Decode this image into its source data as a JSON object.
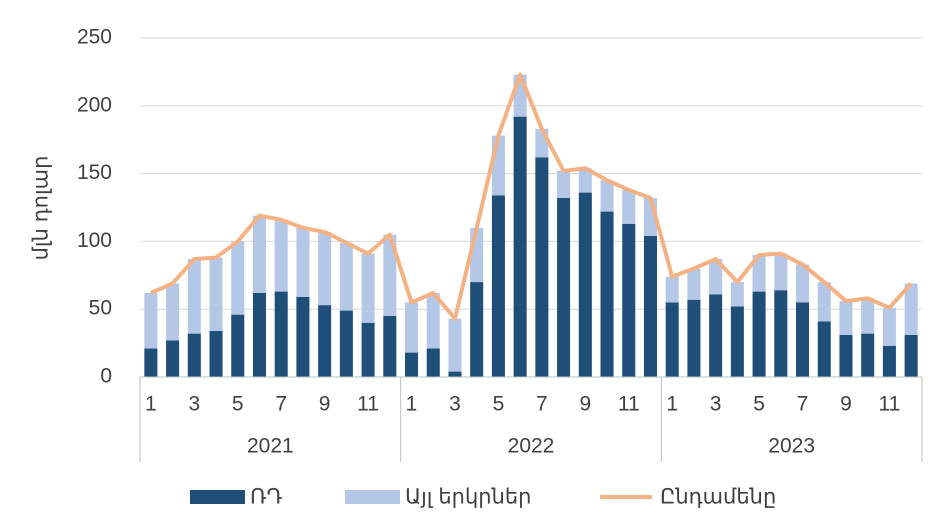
{
  "chart_data": {
    "type": "stacked_bar_line",
    "y_label": "մլն դոլար",
    "categories": [
      "1",
      null,
      "3",
      null,
      "5",
      null,
      "7",
      null,
      "9",
      null,
      "11",
      null,
      "1",
      null,
      "3",
      null,
      "5",
      null,
      "7",
      null,
      "9",
      null,
      "11",
      null,
      "1",
      null,
      "3",
      null,
      "5",
      null,
      "7",
      null,
      "9",
      null,
      "11",
      null
    ],
    "group_labels": [
      "2021",
      "2022",
      "2023"
    ],
    "series": [
      {
        "name": "ՌԴ",
        "color": "#1f4e79",
        "kind": "bar",
        "values": [
          21,
          27,
          32,
          34,
          46,
          62,
          63,
          59,
          53,
          49,
          40,
          45,
          18,
          21,
          4,
          70,
          134,
          192,
          162,
          132,
          136,
          122,
          113,
          104,
          55,
          57,
          61,
          52,
          63,
          64,
          55,
          41,
          31,
          32,
          23,
          31
        ]
      },
      {
        "name": "Այլ երկրներ",
        "color": "#b4c7e7",
        "kind": "bar",
        "values": [
          41,
          42,
          55,
          54,
          54,
          57,
          53,
          51,
          54,
          50,
          51,
          60,
          37,
          41,
          39,
          40,
          44,
          31,
          21,
          20,
          18,
          23,
          25,
          28,
          19,
          23,
          26,
          18,
          27,
          27,
          28,
          29,
          25,
          26,
          28,
          38
        ]
      },
      {
        "name": "Ընդամենը",
        "color": "#f4b183",
        "kind": "line",
        "values": [
          62,
          69,
          87,
          88,
          100,
          119,
          116,
          110,
          107,
          99,
          91,
          105,
          55,
          62,
          43,
          110,
          178,
          223,
          183,
          152,
          154,
          145,
          138,
          132,
          74,
          80,
          87,
          70,
          90,
          91,
          83,
          70,
          56,
          58,
          51,
          69
        ]
      }
    ],
    "ylim": [
      0,
      250
    ],
    "yticks": [
      0,
      50,
      100,
      150,
      200,
      250
    ],
    "grid": true
  }
}
